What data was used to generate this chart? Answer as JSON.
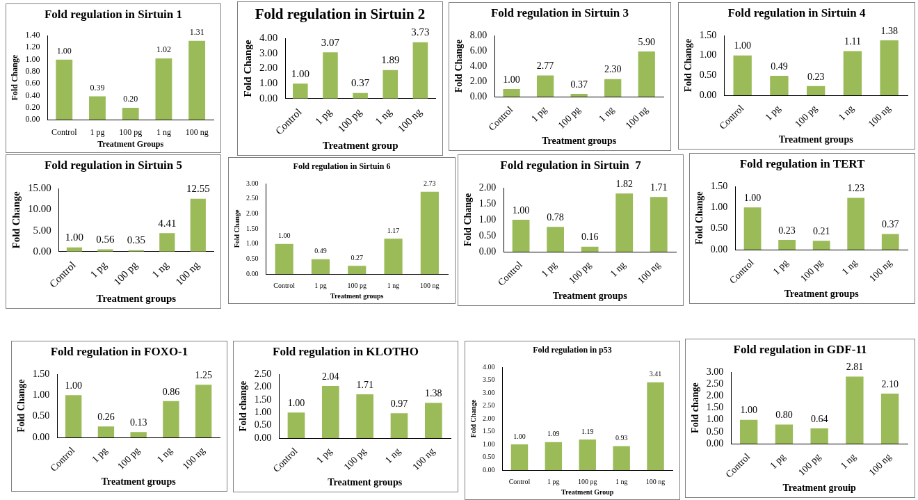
{
  "chart_data": [
    {
      "type": "bar",
      "title": "Fold regulation in Sirtuin 1",
      "xlabel": "Treatment Groups",
      "ylabel": "Fold Change",
      "categories": [
        "Control",
        "1 pg",
        "100 pg",
        "1 ng",
        "100 ng"
      ],
      "values": [
        1.0,
        0.39,
        0.2,
        1.02,
        1.31
      ],
      "value_labels": [
        "1.00",
        "0.39",
        "0.20",
        "1.02",
        "1.31"
      ],
      "color": "#9bbb59",
      "ylim": [
        0,
        1.4
      ],
      "yticks": [
        {
          "value": 0,
          "label": "0.00"
        },
        {
          "value": 0.2,
          "label": "0.20"
        },
        {
          "value": 0.4,
          "label": "0.40"
        },
        {
          "value": 0.6,
          "label": "0.60"
        },
        {
          "value": 0.8,
          "label": "0.80"
        },
        {
          "value": 1,
          "label": "1.00"
        },
        {
          "value": 1.2,
          "label": "1.20"
        },
        {
          "value": 1.4,
          "label": "1.40"
        }
      ],
      "grid": false,
      "legend": false
    },
    {
      "type": "bar",
      "title": "Fold regulation in Sirtuin 2",
      "xlabel": "Treatment group",
      "ylabel": "Fold Change",
      "categories": [
        "Control",
        "1 pg",
        "100 pg",
        "1 ng",
        "100 ng"
      ],
      "values": [
        1.0,
        3.07,
        0.37,
        1.89,
        3.73
      ],
      "value_labels": [
        "1.00",
        "3.07",
        "0.37",
        "1.89",
        "3.73"
      ],
      "color": "#9bbb59",
      "ylim": [
        0,
        4
      ],
      "yticks": [
        {
          "value": 0,
          "label": "0.00"
        },
        {
          "value": 1,
          "label": "1.00"
        },
        {
          "value": 2,
          "label": "2.00"
        },
        {
          "value": 3,
          "label": "3.00"
        },
        {
          "value": 4,
          "label": "4.00"
        }
      ],
      "grid": false,
      "legend": false
    },
    {
      "type": "bar",
      "title": "Fold regulation in Sirtuin 3",
      "xlabel": "Treatment groups",
      "ylabel": "Fold Change",
      "categories": [
        "Control",
        "1 pg",
        "100 pg",
        "1 ng",
        "100 ng"
      ],
      "values": [
        1.0,
        2.77,
        0.37,
        2.3,
        5.9
      ],
      "value_labels": [
        "1.00",
        "2.77",
        "0.37",
        "2.30",
        "5.90"
      ],
      "color": "#9bbb59",
      "ylim": [
        0,
        8
      ],
      "yticks": [
        {
          "value": 0,
          "label": "0.00"
        },
        {
          "value": 2,
          "label": "2.00"
        },
        {
          "value": 4,
          "label": "4.00"
        },
        {
          "value": 6,
          "label": "6.00"
        },
        {
          "value": 8,
          "label": "8.00"
        }
      ],
      "grid": false,
      "legend": false
    },
    {
      "type": "bar",
      "title": "Fold regulation in Sirtuin 4",
      "xlabel": "Treatment groups",
      "ylabel": "Fold Change",
      "categories": [
        "Control",
        "1 pg",
        "100 pg",
        "1 ng",
        "100 ng"
      ],
      "values": [
        1.0,
        0.49,
        0.23,
        1.11,
        1.38
      ],
      "value_labels": [
        "1.00",
        "0.49",
        "0.23",
        "1.11",
        "1.38"
      ],
      "color": "#9bbb59",
      "ylim": [
        0,
        1.5
      ],
      "yticks": [
        {
          "value": 0,
          "label": "0.00"
        },
        {
          "value": 0.5,
          "label": "0.50"
        },
        {
          "value": 1,
          "label": "1.00"
        },
        {
          "value": 1.5,
          "label": "1.50"
        }
      ],
      "grid": false,
      "legend": false
    },
    {
      "type": "bar",
      "title": "Fold regulation in Sirtuin 5",
      "xlabel": "Treatment groups",
      "ylabel": "Fold Change",
      "categories": [
        "Control",
        "1 pg",
        "100 pg",
        "1 ng",
        "100 ng"
      ],
      "values": [
        1.0,
        0.56,
        0.35,
        4.41,
        12.55
      ],
      "value_labels": [
        "1.00",
        "0.56",
        "0.35",
        "4.41",
        "12.55"
      ],
      "color": "#9bbb59",
      "ylim": [
        0,
        15
      ],
      "yticks": [
        {
          "value": 0,
          "label": "0.00"
        },
        {
          "value": 5,
          "label": "5.00"
        },
        {
          "value": 10,
          "label": "10.00"
        },
        {
          "value": 15,
          "label": "15.00"
        }
      ],
      "grid": false,
      "legend": false
    },
    {
      "type": "bar",
      "title": "Fold regulation in Sirtuin 6",
      "xlabel": "Treatment groups",
      "ylabel": "Fold Change",
      "categories": [
        "Control",
        "1 pg",
        "100 pg",
        "1 ng",
        "100 ng"
      ],
      "values": [
        1.0,
        0.49,
        0.27,
        1.17,
        2.73
      ],
      "value_labels": [
        "1.00",
        "0.49",
        "0.27",
        "1.17",
        "2.73"
      ],
      "color": "#9bbb59",
      "ylim": [
        0,
        3
      ],
      "yticks": [
        {
          "value": 0,
          "label": "0.00"
        },
        {
          "value": 0.5,
          "label": "0.50"
        },
        {
          "value": 1,
          "label": "1.00"
        },
        {
          "value": 1.5,
          "label": "1.50"
        },
        {
          "value": 2,
          "label": "2.00"
        },
        {
          "value": 2.5,
          "label": "2.50"
        },
        {
          "value": 3,
          "label": "3.00"
        }
      ],
      "grid": false,
      "legend": false
    },
    {
      "type": "bar",
      "title": "Fold regulation in Sirtuin  7",
      "xlabel": "Treatment groups",
      "ylabel": "Fold Change",
      "categories": [
        "Control",
        "1 pg",
        "100 pg",
        "1 ng",
        "100 ng"
      ],
      "values": [
        1.0,
        0.78,
        0.16,
        1.82,
        1.71
      ],
      "value_labels": [
        "1.00",
        "0.78",
        "0.16",
        "1.82",
        "1.71"
      ],
      "color": "#9bbb59",
      "ylim": [
        0,
        2
      ],
      "yticks": [
        {
          "value": 0,
          "label": "0.00"
        },
        {
          "value": 0.5,
          "label": "0.50"
        },
        {
          "value": 1,
          "label": "1.00"
        },
        {
          "value": 1.5,
          "label": "1.50"
        },
        {
          "value": 2,
          "label": "2.00"
        }
      ],
      "grid": false,
      "legend": false
    },
    {
      "type": "bar",
      "title": "Fold regulation in TERT",
      "xlabel": "Treatment groups",
      "ylabel": "Fold Change",
      "categories": [
        "Control",
        "1 pg",
        "100 pg",
        "1 ng",
        "100 ng"
      ],
      "values": [
        1.0,
        0.23,
        0.21,
        1.23,
        0.37
      ],
      "value_labels": [
        "1.00",
        "0.23",
        "0.21",
        "1.23",
        "0.37"
      ],
      "color": "#9bbb59",
      "ylim": [
        0,
        1.5
      ],
      "yticks": [
        {
          "value": 0,
          "label": "0.00"
        },
        {
          "value": 0.5,
          "label": "0.50"
        },
        {
          "value": 1,
          "label": "1.00"
        },
        {
          "value": 1.5,
          "label": "1.50"
        }
      ],
      "grid": false,
      "legend": false
    },
    {
      "type": "bar",
      "title": "Fold regulation in FOXO-1",
      "xlabel": "Treatment groups",
      "ylabel": "Fold Change",
      "categories": [
        "Control",
        "1 pg",
        "100 pg",
        "1 ng",
        "100 ng"
      ],
      "values": [
        1.0,
        0.26,
        0.13,
        0.86,
        1.25
      ],
      "value_labels": [
        "1.00",
        "0.26",
        "0.13",
        "0.86",
        "1.25"
      ],
      "color": "#9bbb59",
      "ylim": [
        0,
        1.5
      ],
      "yticks": [
        {
          "value": 0,
          "label": "0.00"
        },
        {
          "value": 0.5,
          "label": "0.50"
        },
        {
          "value": 1,
          "label": "1.00"
        },
        {
          "value": 1.5,
          "label": "1.50"
        }
      ],
      "grid": false,
      "legend": false
    },
    {
      "type": "bar",
      "title": "Fold regulation in KLOTHO",
      "xlabel": "Treatment groups",
      "ylabel": "Fold change",
      "categories": [
        "Control",
        "1 pg",
        "100 pg",
        "1 ng",
        "100 ng"
      ],
      "values": [
        1.0,
        2.04,
        1.71,
        0.97,
        1.38
      ],
      "value_labels": [
        "1.00",
        "2.04",
        "1.71",
        "0.97",
        "1.38"
      ],
      "color": "#9bbb59",
      "ylim": [
        0,
        2.5
      ],
      "yticks": [
        {
          "value": 0,
          "label": "0.00"
        },
        {
          "value": 0.5,
          "label": "0.50"
        },
        {
          "value": 1,
          "label": "1.00"
        },
        {
          "value": 1.5,
          "label": "1.50"
        },
        {
          "value": 2,
          "label": "2.00"
        },
        {
          "value": 2.5,
          "label": "2.50"
        }
      ],
      "grid": false,
      "legend": false
    },
    {
      "type": "bar",
      "title": "Fold regulation in p53",
      "xlabel": "Treatment Group",
      "ylabel": "Fold Change",
      "categories": [
        "Control",
        "1 pg",
        "100 pg",
        "1 ng",
        "100 ng"
      ],
      "values": [
        1.0,
        1.09,
        1.19,
        0.93,
        3.41
      ],
      "value_labels": [
        "1.00",
        "1.09",
        "1.19",
        "0.93",
        "3.41"
      ],
      "color": "#9bbb59",
      "ylim": [
        0,
        4
      ],
      "yticks": [
        {
          "value": 0,
          "label": "0.00"
        },
        {
          "value": 0.5,
          "label": "0.50"
        },
        {
          "value": 1,
          "label": "1.00"
        },
        {
          "value": 1.5,
          "label": "1.50"
        },
        {
          "value": 2,
          "label": "2.00"
        },
        {
          "value": 2.5,
          "label": "2.50"
        },
        {
          "value": 3,
          "label": "3.00"
        },
        {
          "value": 3.5,
          "label": "3.50"
        },
        {
          "value": 4,
          "label": "4.00"
        }
      ],
      "grid": false,
      "legend": false
    },
    {
      "type": "bar",
      "title": "Fold regulation in GDF-11",
      "xlabel": "Treatment grouip",
      "ylabel": "Fold change",
      "categories": [
        "Control",
        "1 pg",
        "100 pg",
        "1 ng",
        "100 ng"
      ],
      "values": [
        1.0,
        0.8,
        0.64,
        2.81,
        2.1
      ],
      "value_labels": [
        "1.00",
        "0.80",
        "0.64",
        "2.81",
        "2.10"
      ],
      "color": "#9bbb59",
      "ylim": [
        0,
        3
      ],
      "yticks": [
        {
          "value": 0,
          "label": "0.00"
        },
        {
          "value": 0.5,
          "label": "0.50"
        },
        {
          "value": 1,
          "label": "1.00"
        },
        {
          "value": 1.5,
          "label": "1.50"
        },
        {
          "value": 2,
          "label": "2.00"
        },
        {
          "value": 2.5,
          "label": "2.50"
        },
        {
          "value": 3,
          "label": "3.00"
        }
      ],
      "grid": false,
      "legend": false
    }
  ]
}
